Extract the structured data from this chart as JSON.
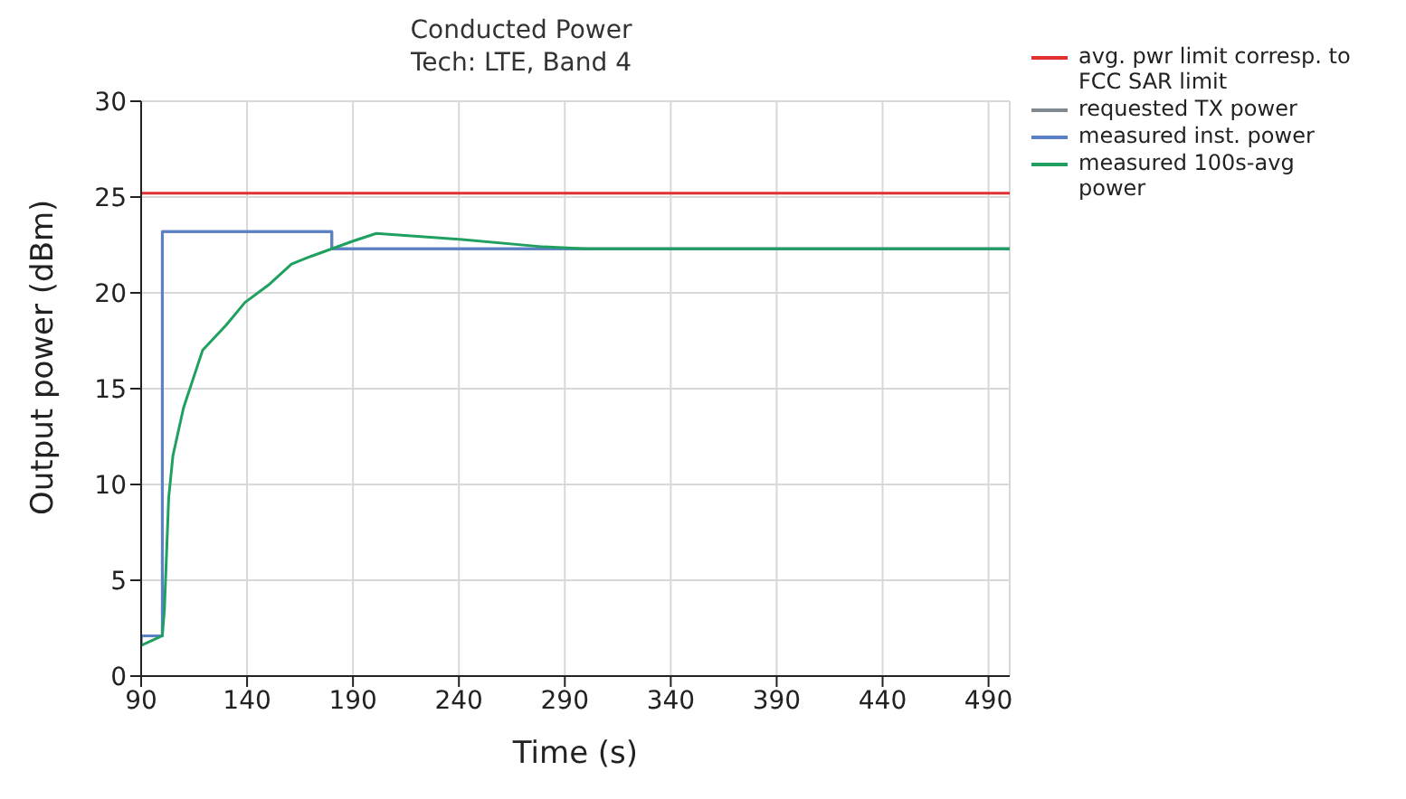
{
  "chart_data": {
    "type": "line",
    "title": "Conducted Power",
    "subtitle": "Tech: LTE, Band 4",
    "xlabel": "Time (s)",
    "ylabel": "Output power (dBm)",
    "xlim": [
      90,
      500
    ],
    "xticks": [
      90,
      140,
      190,
      240,
      290,
      340,
      390,
      440,
      490
    ],
    "ylim": [
      0,
      30
    ],
    "yticks": [
      0,
      5,
      10,
      15,
      20,
      25,
      30
    ],
    "grid": true,
    "legend": "right",
    "marker": "none",
    "line_style": "solid",
    "series": [
      {
        "name": "avg. pwr limit corresp. to FCC SAR limit",
        "color": "#e03030",
        "x": [
          90,
          500
        ],
        "values": [
          25.2,
          25.2
        ]
      },
      {
        "name": "requested TX power",
        "color": "#808890",
        "x": [
          90,
          90,
          100,
          100,
          180,
          180,
          500
        ],
        "values": [
          1.6,
          2.1,
          2.1,
          23.2,
          23.2,
          22.3,
          22.3
        ]
      },
      {
        "name": "measured inst. power",
        "color": "#5a80c8",
        "x": [
          90,
          90,
          100,
          100,
          180,
          180,
          500
        ],
        "values": [
          1.6,
          2.1,
          2.1,
          23.2,
          23.2,
          22.3,
          22.3
        ]
      },
      {
        "name": "measured 100s-avg power",
        "color": "#20a060",
        "x": [
          90,
          100,
          101,
          103,
          105,
          107,
          110,
          119,
          130,
          139,
          150,
          161,
          170,
          180,
          190,
          201,
          240,
          280,
          300,
          500
        ],
        "values": [
          1.6,
          2.1,
          3.5,
          9.3,
          11.5,
          12.5,
          14,
          17,
          18.3,
          19.5,
          20.4,
          21.5,
          21.9,
          22.3,
          22.7,
          23.1,
          22.8,
          22.4,
          22.3,
          22.3
        ]
      }
    ]
  }
}
